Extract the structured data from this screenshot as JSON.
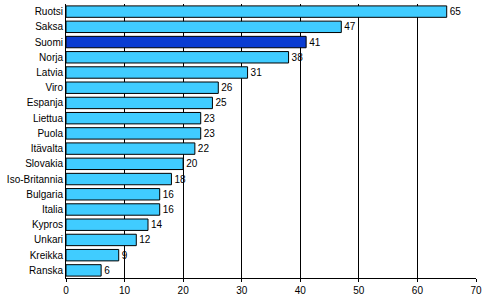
{
  "chart_data": {
    "type": "bar",
    "orientation": "horizontal",
    "categories": [
      "Ruotsi",
      "Saksa",
      "Suomi",
      "Norja",
      "Latvia",
      "Viro",
      "Espanja",
      "Liettua",
      "Puola",
      "Itävalta",
      "Slovakia",
      "Iso-Britannia",
      "Bulgaria",
      "Italia",
      "Kypros",
      "Unkari",
      "Kreikka",
      "Ranska"
    ],
    "values": [
      65,
      47,
      41,
      38,
      31,
      26,
      25,
      23,
      23,
      22,
      20,
      18,
      16,
      16,
      14,
      12,
      9,
      6
    ],
    "colors": [
      "#40ccff",
      "#40ccff",
      "#0a3cd2",
      "#40ccff",
      "#40ccff",
      "#40ccff",
      "#40ccff",
      "#40ccff",
      "#40ccff",
      "#40ccff",
      "#40ccff",
      "#40ccff",
      "#40ccff",
      "#40ccff",
      "#40ccff",
      "#40ccff",
      "#40ccff",
      "#40ccff"
    ],
    "xlim": [
      0,
      70
    ],
    "xticks": [
      0,
      10,
      20,
      30,
      40,
      50,
      60,
      70
    ],
    "grid": true,
    "data_labels": true
  }
}
